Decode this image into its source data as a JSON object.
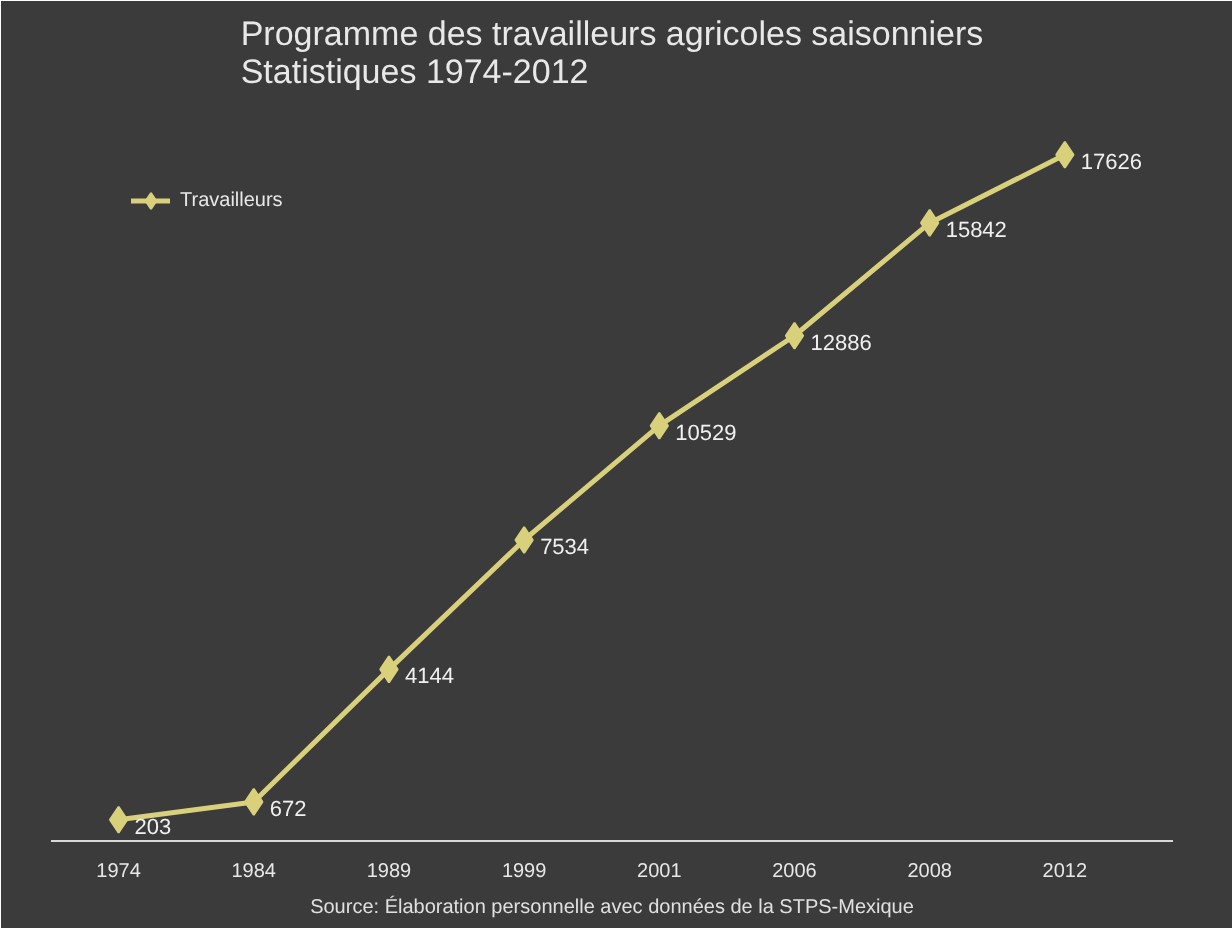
{
  "chart_data": {
    "type": "line",
    "title": "Programme des travailleurs agricoles saisonniers\nStatistiques 1974-2012",
    "categories": [
      "1974",
      "1984",
      "1989",
      "1999",
      "2001",
      "2006",
      "2008",
      "2012"
    ],
    "series": [
      {
        "name": "Travailleurs",
        "color": "#d9d07c",
        "values": [
          203,
          672,
          4144,
          7534,
          10529,
          12886,
          15842,
          17626
        ]
      }
    ],
    "data_labels": true,
    "marker": "diamond",
    "legend": "top left",
    "tick_labels": "x",
    "grid": false,
    "annotations": [
      "Source: Élaboration personnelle avec données de la STPS-Mexique"
    ]
  }
}
